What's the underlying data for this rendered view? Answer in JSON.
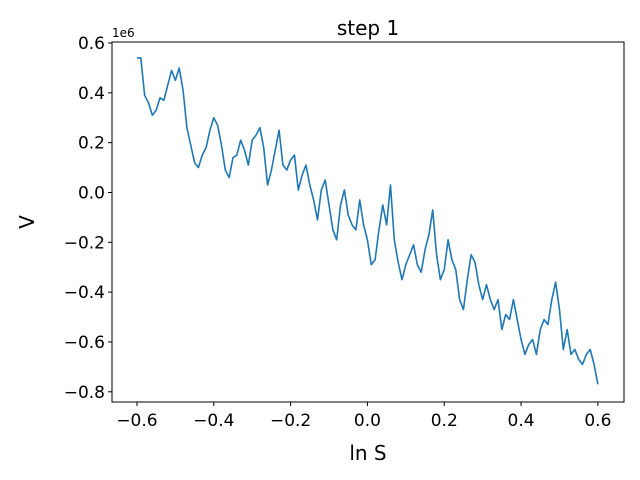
{
  "chart_data": {
    "type": "line",
    "title": "step 1",
    "x_label": "ln S",
    "y_label": "V",
    "y_offset_label": "1e6",
    "color": "#1f77b4",
    "xlim": [
      -0.665,
      0.668
    ],
    "ylim": [
      -0.841,
      0.604
    ],
    "xticks": [
      {
        "value": -0.6,
        "label": "−0.6"
      },
      {
        "value": -0.4,
        "label": "−0.4"
      },
      {
        "value": -0.2,
        "label": "−0.2"
      },
      {
        "value": 0,
        "label": "0.0"
      },
      0.2,
      0.4,
      0.6
    ],
    "yticks": [
      {
        "value": -0.8,
        "label": "−0.8"
      },
      {
        "value": -0.6,
        "label": "−0.6"
      },
      {
        "value": -0.4,
        "label": "−0.4"
      },
      {
        "value": -0.2,
        "label": "−0.2"
      },
      {
        "value": 0,
        "label": "0.0"
      },
      0.2,
      0.4,
      0.6
    ],
    "x": [
      -0.6,
      -0.59,
      -0.58,
      -0.57,
      -0.56,
      -0.55,
      -0.54,
      -0.53,
      -0.52,
      -0.51,
      -0.5,
      -0.49,
      -0.48,
      -0.47,
      -0.46,
      -0.45,
      -0.44,
      -0.43,
      -0.42,
      -0.41,
      -0.4,
      -0.39,
      -0.38,
      -0.37,
      -0.36,
      -0.35,
      -0.34,
      -0.33,
      -0.32,
      -0.31,
      -0.3,
      -0.29,
      -0.28,
      -0.27,
      -0.26,
      -0.25,
      -0.24,
      -0.23,
      -0.22,
      -0.21,
      -0.2,
      -0.19,
      -0.18,
      -0.17,
      -0.16,
      -0.15,
      -0.14,
      -0.13,
      -0.12,
      -0.11,
      -0.1,
      -0.09,
      -0.08,
      -0.07,
      -0.06,
      -0.05,
      -0.04,
      -0.03,
      -0.02,
      -0.01,
      0,
      0.01,
      0.02,
      0.03,
      0.04,
      0.05,
      0.06,
      0.07,
      0.08,
      0.09,
      0.1,
      0.11,
      0.12,
      0.13,
      0.14,
      0.15,
      0.16,
      0.17,
      0.18,
      0.19,
      0.2,
      0.21,
      0.22,
      0.23,
      0.24,
      0.25,
      0.26,
      0.27,
      0.28,
      0.29,
      0.3,
      0.31,
      0.32,
      0.33,
      0.34,
      0.35,
      0.36,
      0.37,
      0.38,
      0.39,
      0.4,
      0.41,
      0.42,
      0.43,
      0.44,
      0.45,
      0.46,
      0.47,
      0.48,
      0.49,
      0.5,
      0.51,
      0.52,
      0.53,
      0.54,
      0.55,
      0.56,
      0.57,
      0.58,
      0.59,
      0.6
    ],
    "values": [
      0.54,
      0.54,
      0.39,
      0.36,
      0.31,
      0.33,
      0.38,
      0.37,
      0.43,
      0.49,
      0.45,
      0.5,
      0.41,
      0.26,
      0.19,
      0.12,
      0.1,
      0.15,
      0.18,
      0.25,
      0.3,
      0.27,
      0.19,
      0.09,
      0.06,
      0.14,
      0.15,
      0.21,
      0.17,
      0.11,
      0.21,
      0.23,
      0.26,
      0.18,
      0.03,
      0.09,
      0.17,
      0.25,
      0.11,
      0.09,
      0.13,
      0.15,
      0.01,
      0.07,
      0.11,
      0.03,
      -0.03,
      -0.11,
      0.01,
      0.05,
      -0.05,
      -0.15,
      -0.19,
      -0.05,
      0.01,
      -0.09,
      -0.13,
      -0.15,
      -0.03,
      -0.13,
      -0.19,
      -0.29,
      -0.27,
      -0.15,
      -0.05,
      -0.13,
      0.03,
      -0.19,
      -0.28,
      -0.35,
      -0.29,
      -0.25,
      -0.21,
      -0.29,
      -0.32,
      -0.23,
      -0.17,
      -0.07,
      -0.25,
      -0.35,
      -0.31,
      -0.19,
      -0.27,
      -0.31,
      -0.43,
      -0.47,
      -0.35,
      -0.25,
      -0.28,
      -0.37,
      -0.43,
      -0.37,
      -0.43,
      -0.47,
      -0.43,
      -0.55,
      -0.49,
      -0.51,
      -0.43,
      -0.51,
      -0.59,
      -0.65,
      -0.61,
      -0.59,
      -0.65,
      -0.55,
      -0.51,
      -0.53,
      -0.43,
      -0.36,
      -0.47,
      -0.63,
      -0.55,
      -0.65,
      -0.63,
      -0.67,
      -0.69,
      -0.65,
      -0.63,
      -0.69,
      -0.77
    ]
  }
}
